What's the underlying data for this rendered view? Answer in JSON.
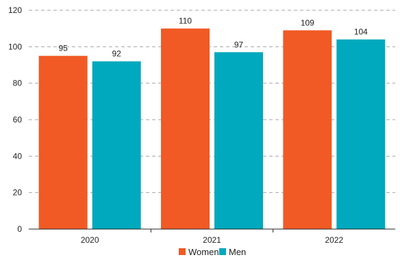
{
  "chart_data": {
    "type": "bar",
    "categories": [
      "2020",
      "2021",
      "2022"
    ],
    "series": [
      {
        "name": "Women",
        "values": [
          95,
          110,
          109
        ],
        "color": "#f15a24"
      },
      {
        "name": "Men",
        "values": [
          92,
          97,
          104
        ],
        "color": "#00a9bd"
      }
    ],
    "ylim": [
      0,
      120
    ],
    "yticks": [
      0,
      20,
      40,
      60,
      80,
      100,
      120
    ],
    "grid": true,
    "legend_position": "bottom-center"
  }
}
